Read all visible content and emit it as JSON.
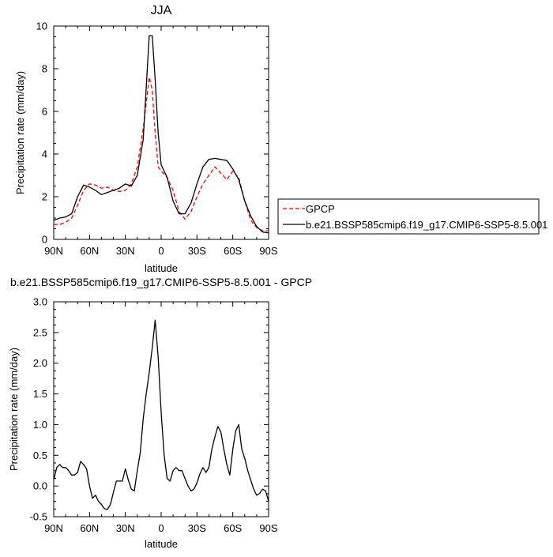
{
  "chart_data": [
    {
      "type": "line",
      "title": "JJA",
      "xlabel": "latitude",
      "ylabel": "Precipitation rate (mm/day)",
      "xlim": [
        90,
        -90
      ],
      "ylim": [
        0,
        10
      ],
      "xticks": [
        90,
        60,
        30,
        0,
        -30,
        -60,
        -90
      ],
      "xtick_labels": [
        "90N",
        "60N",
        "30N",
        "0",
        "30S",
        "60S",
        "90S"
      ],
      "yticks": [
        0,
        2,
        4,
        6,
        8,
        10
      ],
      "ytick_labels": [
        "0",
        "2",
        "4",
        "6",
        "8",
        "10"
      ],
      "grid": false,
      "legend_position": "right",
      "series": [
        {
          "name": "GPCP",
          "color": "#ff0000",
          "dash": "dashed",
          "x": [
            90,
            85,
            80,
            75,
            70,
            65,
            60,
            55,
            50,
            45,
            40,
            35,
            30,
            25,
            20,
            15,
            10,
            7.5,
            5,
            2.5,
            0,
            -5,
            -10,
            -15,
            -20,
            -25,
            -30,
            -35,
            -40,
            -45,
            -50,
            -55,
            -60,
            -65,
            -70,
            -75,
            -80,
            -85,
            -90
          ],
          "y": [
            0.7,
            0.7,
            0.8,
            1.0,
            1.6,
            2.3,
            2.6,
            2.55,
            2.4,
            2.45,
            2.3,
            2.25,
            2.3,
            2.6,
            3.4,
            5.2,
            7.6,
            7.0,
            5.0,
            3.4,
            3.2,
            2.9,
            2.3,
            1.3,
            0.95,
            1.3,
            2.0,
            2.6,
            3.0,
            3.4,
            3.1,
            2.8,
            3.2,
            2.9,
            1.8,
            0.9,
            0.55,
            0.4,
            0.4
          ]
        },
        {
          "name": "b.e21.BSSP585cmip6.f19_g17.CMIP6-SSP5-8.5.001",
          "color": "#000000",
          "dash": "solid",
          "x": [
            90,
            85,
            80,
            75,
            70,
            65,
            60,
            55,
            50,
            45,
            40,
            35,
            30,
            25,
            20,
            15,
            10,
            7.5,
            5,
            2.5,
            0,
            -5,
            -10,
            -15,
            -20,
            -25,
            -30,
            -35,
            -40,
            -45,
            -50,
            -55,
            -60,
            -65,
            -70,
            -75,
            -80,
            -85,
            -90
          ],
          "y": [
            0.9,
            1.0,
            1.05,
            1.2,
            2.0,
            2.55,
            2.45,
            2.3,
            2.1,
            2.2,
            2.3,
            2.4,
            2.6,
            2.5,
            3.0,
            4.7,
            9.55,
            9.55,
            7.5,
            5.0,
            3.5,
            2.9,
            1.8,
            1.2,
            1.2,
            1.7,
            2.6,
            3.4,
            3.75,
            3.8,
            3.75,
            3.7,
            3.3,
            2.8,
            1.8,
            1.1,
            0.6,
            0.35,
            0.3
          ]
        }
      ]
    },
    {
      "type": "line",
      "title": "b.e21.BSSP585cmip6.f19_g17.CMIP6-SSP5-8.5.001 - GPCP",
      "xlabel": "latitude",
      "ylabel": "Precipitation rate (mm/day)",
      "xlim": [
        90,
        -90
      ],
      "ylim": [
        -0.5,
        3.0
      ],
      "xticks": [
        90,
        60,
        30,
        0,
        -30,
        -60,
        -90
      ],
      "xtick_labels": [
        "90N",
        "60N",
        "30N",
        "0",
        "30S",
        "60S",
        "90S"
      ],
      "yticks": [
        -0.5,
        0,
        0.5,
        1,
        1.5,
        2,
        2.5,
        3
      ],
      "ytick_labels": [
        "-0.5",
        "0.0",
        "0.5",
        "1.0",
        "1.5",
        "2.0",
        "2.5",
        "3.0"
      ],
      "grid": false,
      "series": [
        {
          "color": "#000000",
          "dash": "solid",
          "x": [
            90,
            87.5,
            85,
            82.5,
            80,
            77.5,
            75,
            72.5,
            70,
            67.5,
            65,
            62.5,
            60,
            57.5,
            55,
            52.5,
            50,
            47.5,
            45,
            42.5,
            40,
            37.5,
            35,
            32.5,
            30,
            27.5,
            25,
            22.5,
            20,
            17.5,
            15,
            12.5,
            10,
            7.5,
            5,
            2.5,
            0,
            -2.5,
            -5,
            -7.5,
            -10,
            -12.5,
            -15,
            -17.5,
            -20,
            -22.5,
            -25,
            -27.5,
            -30,
            -32.5,
            -35,
            -37.5,
            -40,
            -42.5,
            -45,
            -47.5,
            -50,
            -52.5,
            -55,
            -57.5,
            -60,
            -62.5,
            -65,
            -67.5,
            -70,
            -72.5,
            -75,
            -77.5,
            -80,
            -82.5,
            -85,
            -87.5,
            -90
          ],
          "y": [
            0.1,
            0.3,
            0.35,
            0.3,
            0.3,
            0.25,
            0.18,
            0.18,
            0.22,
            0.4,
            0.35,
            0.28,
            0.0,
            -0.2,
            -0.15,
            -0.25,
            -0.3,
            -0.37,
            -0.38,
            -0.3,
            -0.1,
            0.08,
            0.08,
            0.08,
            0.28,
            0.1,
            -0.05,
            -0.08,
            0.25,
            0.55,
            1.1,
            1.5,
            1.85,
            2.25,
            2.7,
            2.1,
            1.2,
            0.5,
            0.12,
            0.08,
            0.25,
            0.3,
            0.25,
            0.25,
            0.12,
            0.0,
            -0.08,
            -0.05,
            0.05,
            0.2,
            0.3,
            0.22,
            0.3,
            0.6,
            0.8,
            0.97,
            0.88,
            0.6,
            0.35,
            0.18,
            0.6,
            0.9,
            1.0,
            0.6,
            0.45,
            0.25,
            0.1,
            -0.05,
            -0.15,
            -0.12,
            -0.05,
            -0.08,
            -0.25
          ]
        }
      ]
    }
  ]
}
